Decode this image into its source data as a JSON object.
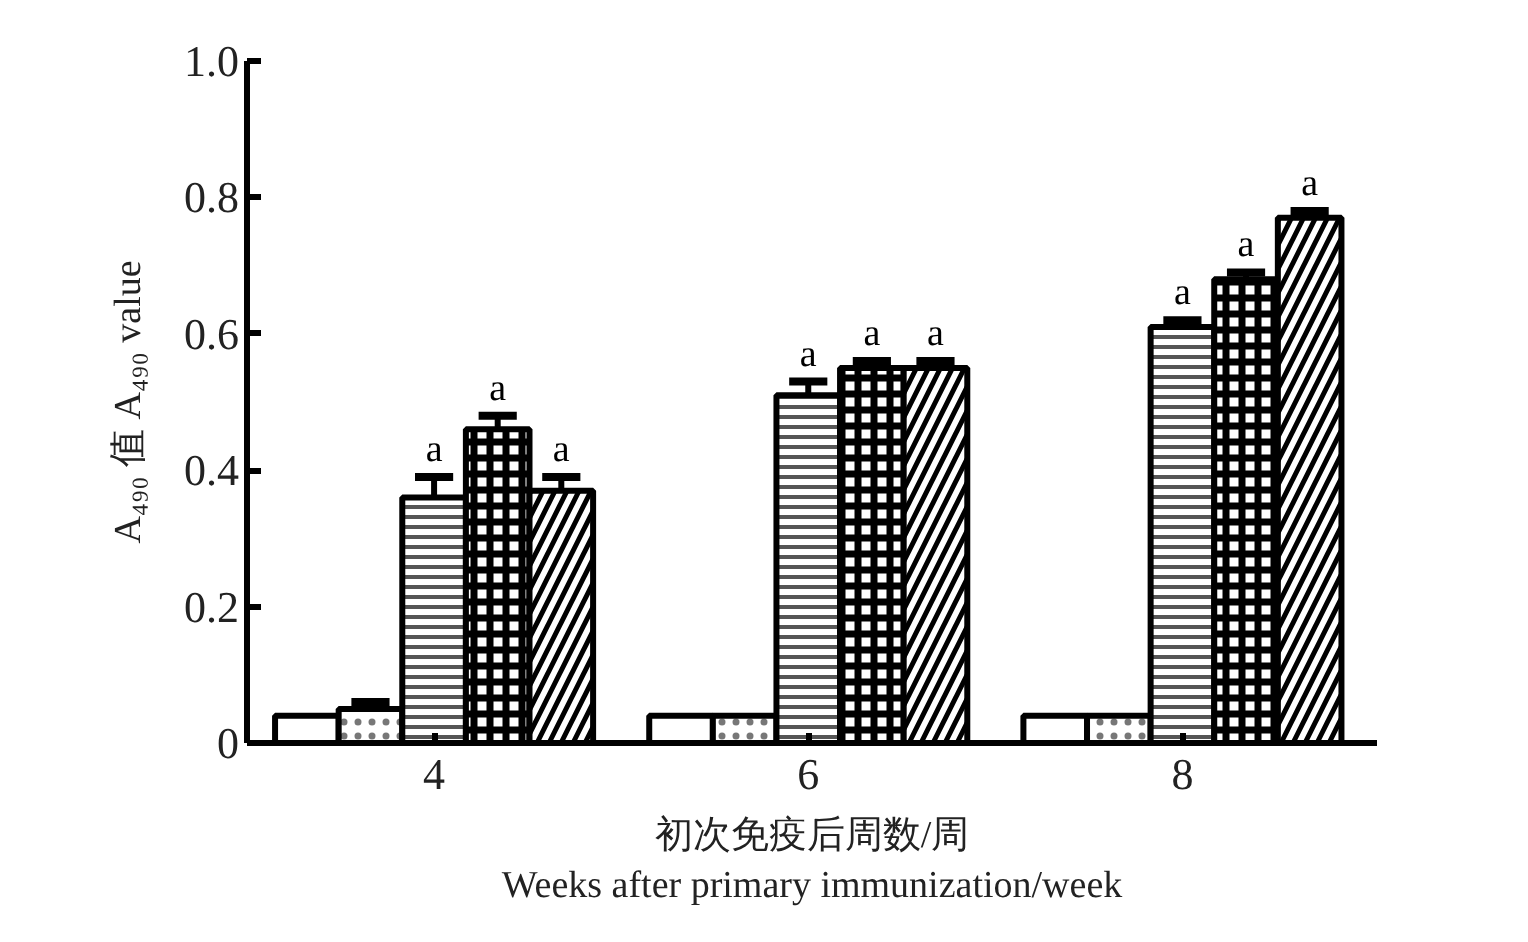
{
  "chart_data": {
    "type": "bar",
    "xlabel": "初次免疫后周数/周\nWeeks after primary immunization/week",
    "ylabel": "A₄₉₀ 值 A₄₉₀ value",
    "categories": [
      "4",
      "6",
      "8"
    ],
    "series": [
      {
        "color": "#ffffff",
        "values": [
          0.04,
          0.04,
          0.04
        ]
      },
      {
        "color": "#ffffff",
        "values": [
          0.05,
          0.04,
          0.04
        ],
        "errors": [
          0.01,
          null,
          null
        ]
      },
      {
        "color": "#ffffff",
        "values": [
          0.36,
          0.51,
          0.61
        ],
        "errors": [
          0.03,
          0.02,
          0.01
        ],
        "value_labels": [
          "a",
          "a",
          "a"
        ]
      },
      {
        "color": "#ffffff",
        "values": [
          0.46,
          0.55,
          0.68
        ],
        "errors": [
          0.02,
          0.01,
          0.01
        ],
        "value_labels": [
          "a",
          "a",
          "a"
        ]
      },
      {
        "color": "#ffffff",
        "values": [
          0.37,
          0.55,
          0.77
        ],
        "errors": [
          0.02,
          0.01,
          0.01
        ],
        "value_labels": [
          "a",
          "a",
          "a"
        ]
      }
    ],
    "ylim": [
      0,
      1
    ],
    "yticks": [
      {
        "value": 0,
        "label": "0"
      },
      0.2,
      0.4,
      0.6,
      0.8,
      {
        "value": 1,
        "label": "1.0"
      }
    ]
  }
}
